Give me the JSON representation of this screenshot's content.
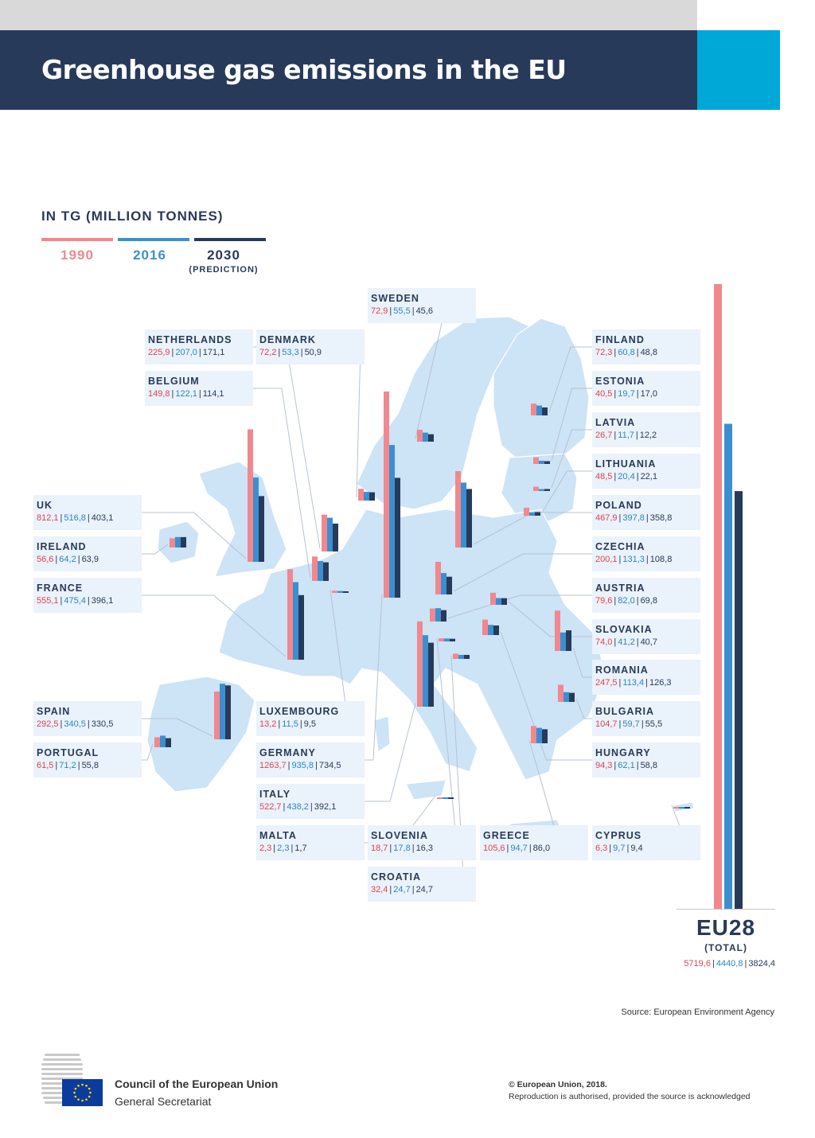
{
  "header": {
    "title": "Greenhouse gas emissions in the EU"
  },
  "unit_label": "IN TG (MILLION TONNES)",
  "legend": [
    {
      "label": "1990",
      "color": "#f0888e"
    },
    {
      "label": "2016",
      "color": "#3b8fd1"
    },
    {
      "label": "2030",
      "sub": "(PREDICTION)",
      "color": "#283a5a"
    }
  ],
  "colors": {
    "y1990": "#f0888e",
    "y2016": "#3b8fd1",
    "y2030": "#283a5a",
    "map": "#cde3f6",
    "header": "#283a5a",
    "accent": "#00a8d8"
  },
  "chart_data": {
    "type": "bar",
    "series_names": [
      "1990",
      "2016",
      "2030"
    ],
    "countries": [
      {
        "name": "UK",
        "v1990": "812,1",
        "v2016": "516,8",
        "v2030": "403,1",
        "values": [
          812.1,
          516.8,
          403.1
        ]
      },
      {
        "name": "IRELAND",
        "v1990": "56,6",
        "v2016": "64,2",
        "v2030": "63,9",
        "values": [
          56.6,
          64.2,
          63.9
        ]
      },
      {
        "name": "FRANCE",
        "v1990": "555,1",
        "v2016": "475,4",
        "v2030": "396,1",
        "values": [
          555.1,
          475.4,
          396.1
        ]
      },
      {
        "name": "SPAIN",
        "v1990": "292,5",
        "v2016": "340,5",
        "v2030": "330,5",
        "values": [
          292.5,
          340.5,
          330.5
        ]
      },
      {
        "name": "PORTUGAL",
        "v1990": "61,5",
        "v2016": "71,2",
        "v2030": "55,8",
        "values": [
          61.5,
          71.2,
          55.8
        ]
      },
      {
        "name": "NETHERLANDS",
        "v1990": "225,9",
        "v2016": "207,0",
        "v2030": "171,1",
        "values": [
          225.9,
          207.0,
          171.1
        ]
      },
      {
        "name": "BELGIUM",
        "v1990": "149,8",
        "v2016": "122,1",
        "v2030": "114,1",
        "values": [
          149.8,
          122.1,
          114.1
        ]
      },
      {
        "name": "DENMARK",
        "v1990": "72,2",
        "v2016": "53,3",
        "v2030": "50,9",
        "values": [
          72.2,
          53.3,
          50.9
        ]
      },
      {
        "name": "LUXEMBOURG",
        "v1990": "13,2",
        "v2016": "11,5",
        "v2030": "9,5",
        "values": [
          13.2,
          11.5,
          9.5
        ]
      },
      {
        "name": "GERMANY",
        "v1990": "1263,7",
        "v2016": "935,8",
        "v2030": "734,5",
        "values": [
          1263.7,
          935.8,
          734.5
        ]
      },
      {
        "name": "ITALY",
        "v1990": "522,7",
        "v2016": "438,2",
        "v2030": "392,1",
        "values": [
          522.7,
          438.2,
          392.1
        ]
      },
      {
        "name": "MALTA",
        "v1990": "2,3",
        "v2016": "2,3",
        "v2030": "1,7",
        "values": [
          2.3,
          2.3,
          1.7
        ]
      },
      {
        "name": "SWEDEN",
        "v1990": "72,9",
        "v2016": "55,5",
        "v2030": "45,6",
        "values": [
          72.9,
          55.5,
          45.6
        ]
      },
      {
        "name": "SLOVENIA",
        "v1990": "18,7",
        "v2016": "17,8",
        "v2030": "16,3",
        "values": [
          18.7,
          17.8,
          16.3
        ]
      },
      {
        "name": "CROATIA",
        "v1990": "32,4",
        "v2016": "24,7",
        "v2030": "24,7",
        "values": [
          32.4,
          24.7,
          24.7
        ]
      },
      {
        "name": "GREECE",
        "v1990": "105,6",
        "v2016": "94,7",
        "v2030": "86,0",
        "values": [
          105.6,
          94.7,
          86.0
        ]
      },
      {
        "name": "FINLAND",
        "v1990": "72,3",
        "v2016": "60,8",
        "v2030": "48,8",
        "values": [
          72.3,
          60.8,
          48.8
        ]
      },
      {
        "name": "ESTONIA",
        "v1990": "40,5",
        "v2016": "19,7",
        "v2030": "17,0",
        "values": [
          40.5,
          19.7,
          17.0
        ]
      },
      {
        "name": "LATVIA",
        "v1990": "26,7",
        "v2016": "11,7",
        "v2030": "12,2",
        "values": [
          26.7,
          11.7,
          12.2
        ]
      },
      {
        "name": "LITHUANIA",
        "v1990": "48,5",
        "v2016": "20,4",
        "v2030": "22,1",
        "values": [
          48.5,
          20.4,
          22.1
        ]
      },
      {
        "name": "POLAND",
        "v1990": "467,9",
        "v2016": "397,8",
        "v2030": "358,8",
        "values": [
          467.9,
          397.8,
          358.8
        ]
      },
      {
        "name": "CZECHIA",
        "v1990": "200,1",
        "v2016": "131,3",
        "v2030": "108,8",
        "values": [
          200.1,
          131.3,
          108.8
        ]
      },
      {
        "name": "AUSTRIA",
        "v1990": "79,6",
        "v2016": "82,0",
        "v2030": "69,8",
        "values": [
          79.6,
          82.0,
          69.8
        ]
      },
      {
        "name": "SLOVAKIA",
        "v1990": "74,0",
        "v2016": "41,2",
        "v2030": "40,7",
        "values": [
          74.0,
          41.2,
          40.7
        ]
      },
      {
        "name": "ROMANIA",
        "v1990": "247,5",
        "v2016": "113,4",
        "v2030": "126,3",
        "values": [
          247.5,
          113.4,
          126.3
        ]
      },
      {
        "name": "BULGARIA",
        "v1990": "104,7",
        "v2016": "59,7",
        "v2030": "55,5",
        "values": [
          104.7,
          59.7,
          55.5
        ]
      },
      {
        "name": "HUNGARY",
        "v1990": "94,3",
        "v2016": "62,1",
        "v2030": "58,8",
        "values": [
          94.3,
          62.1,
          58.8
        ]
      },
      {
        "name": "CYPRUS",
        "v1990": "6,3",
        "v2016": "9,7",
        "v2030": "9,4",
        "values": [
          6.3,
          9.7,
          9.4
        ]
      }
    ],
    "total": {
      "name": "EU28",
      "sub": "(TOTAL)",
      "v1990": "5719,6",
      "v2016": "4440,8",
      "v2030": "3824,4",
      "values": [
        5719.6,
        4440.8,
        3824.4
      ]
    }
  },
  "source": "Source: European Environment Agency",
  "footer": {
    "org_line1": "Council of the European Union",
    "org_line2": "General Secretariat",
    "copyright": "© European Union, 2018.",
    "reproduction": "Reproduction is authorised, provided the source is acknowledged"
  }
}
